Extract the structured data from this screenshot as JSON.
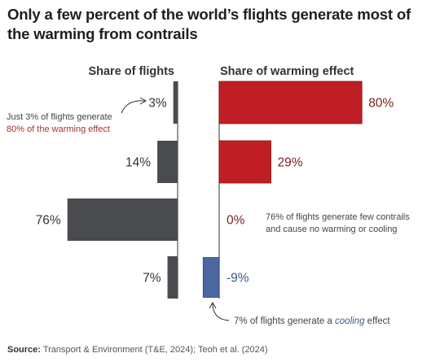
{
  "title": "Only a few percent of the world’s flights generate most of the warming from contrails",
  "source_label": "Source:",
  "source_text": "Transport & Environment (T&E, 2024); Teoh et al. (2024)",
  "colors": {
    "flights": "#4a4b4f",
    "warming": "#bf1e24",
    "cooling": "#4c66a0",
    "axis": "#555555",
    "text": "#222222",
    "label_warming": "#7a2222",
    "label_cooling": "#3d5a8c",
    "annotation": "#444444",
    "highlight_red": "#a8322c",
    "highlight_blue": "#3d5a8c"
  },
  "chart_data": {
    "type": "bar",
    "layout": "paired-horizontal",
    "series": [
      {
        "name": "Share of flights",
        "values": [
          3,
          14,
          76,
          7
        ],
        "labels": [
          "3%",
          "14%",
          "76%",
          "7%"
        ]
      },
      {
        "name": "Share of warming effect",
        "values": [
          80,
          29,
          0,
          -9
        ],
        "labels": [
          "80%",
          "29%",
          "0%",
          "-9%"
        ]
      }
    ],
    "annotations": [
      {
        "lines": [
          "Just 3% of flights generate",
          "80% of the warming effect"
        ]
      },
      {
        "lines": [
          "76% of flights generate few contrails",
          "and cause no warming or cooling"
        ]
      },
      {
        "prefix": "7% of flights generate a ",
        "emphasis": "cooling",
        "suffix": " effect"
      }
    ]
  }
}
